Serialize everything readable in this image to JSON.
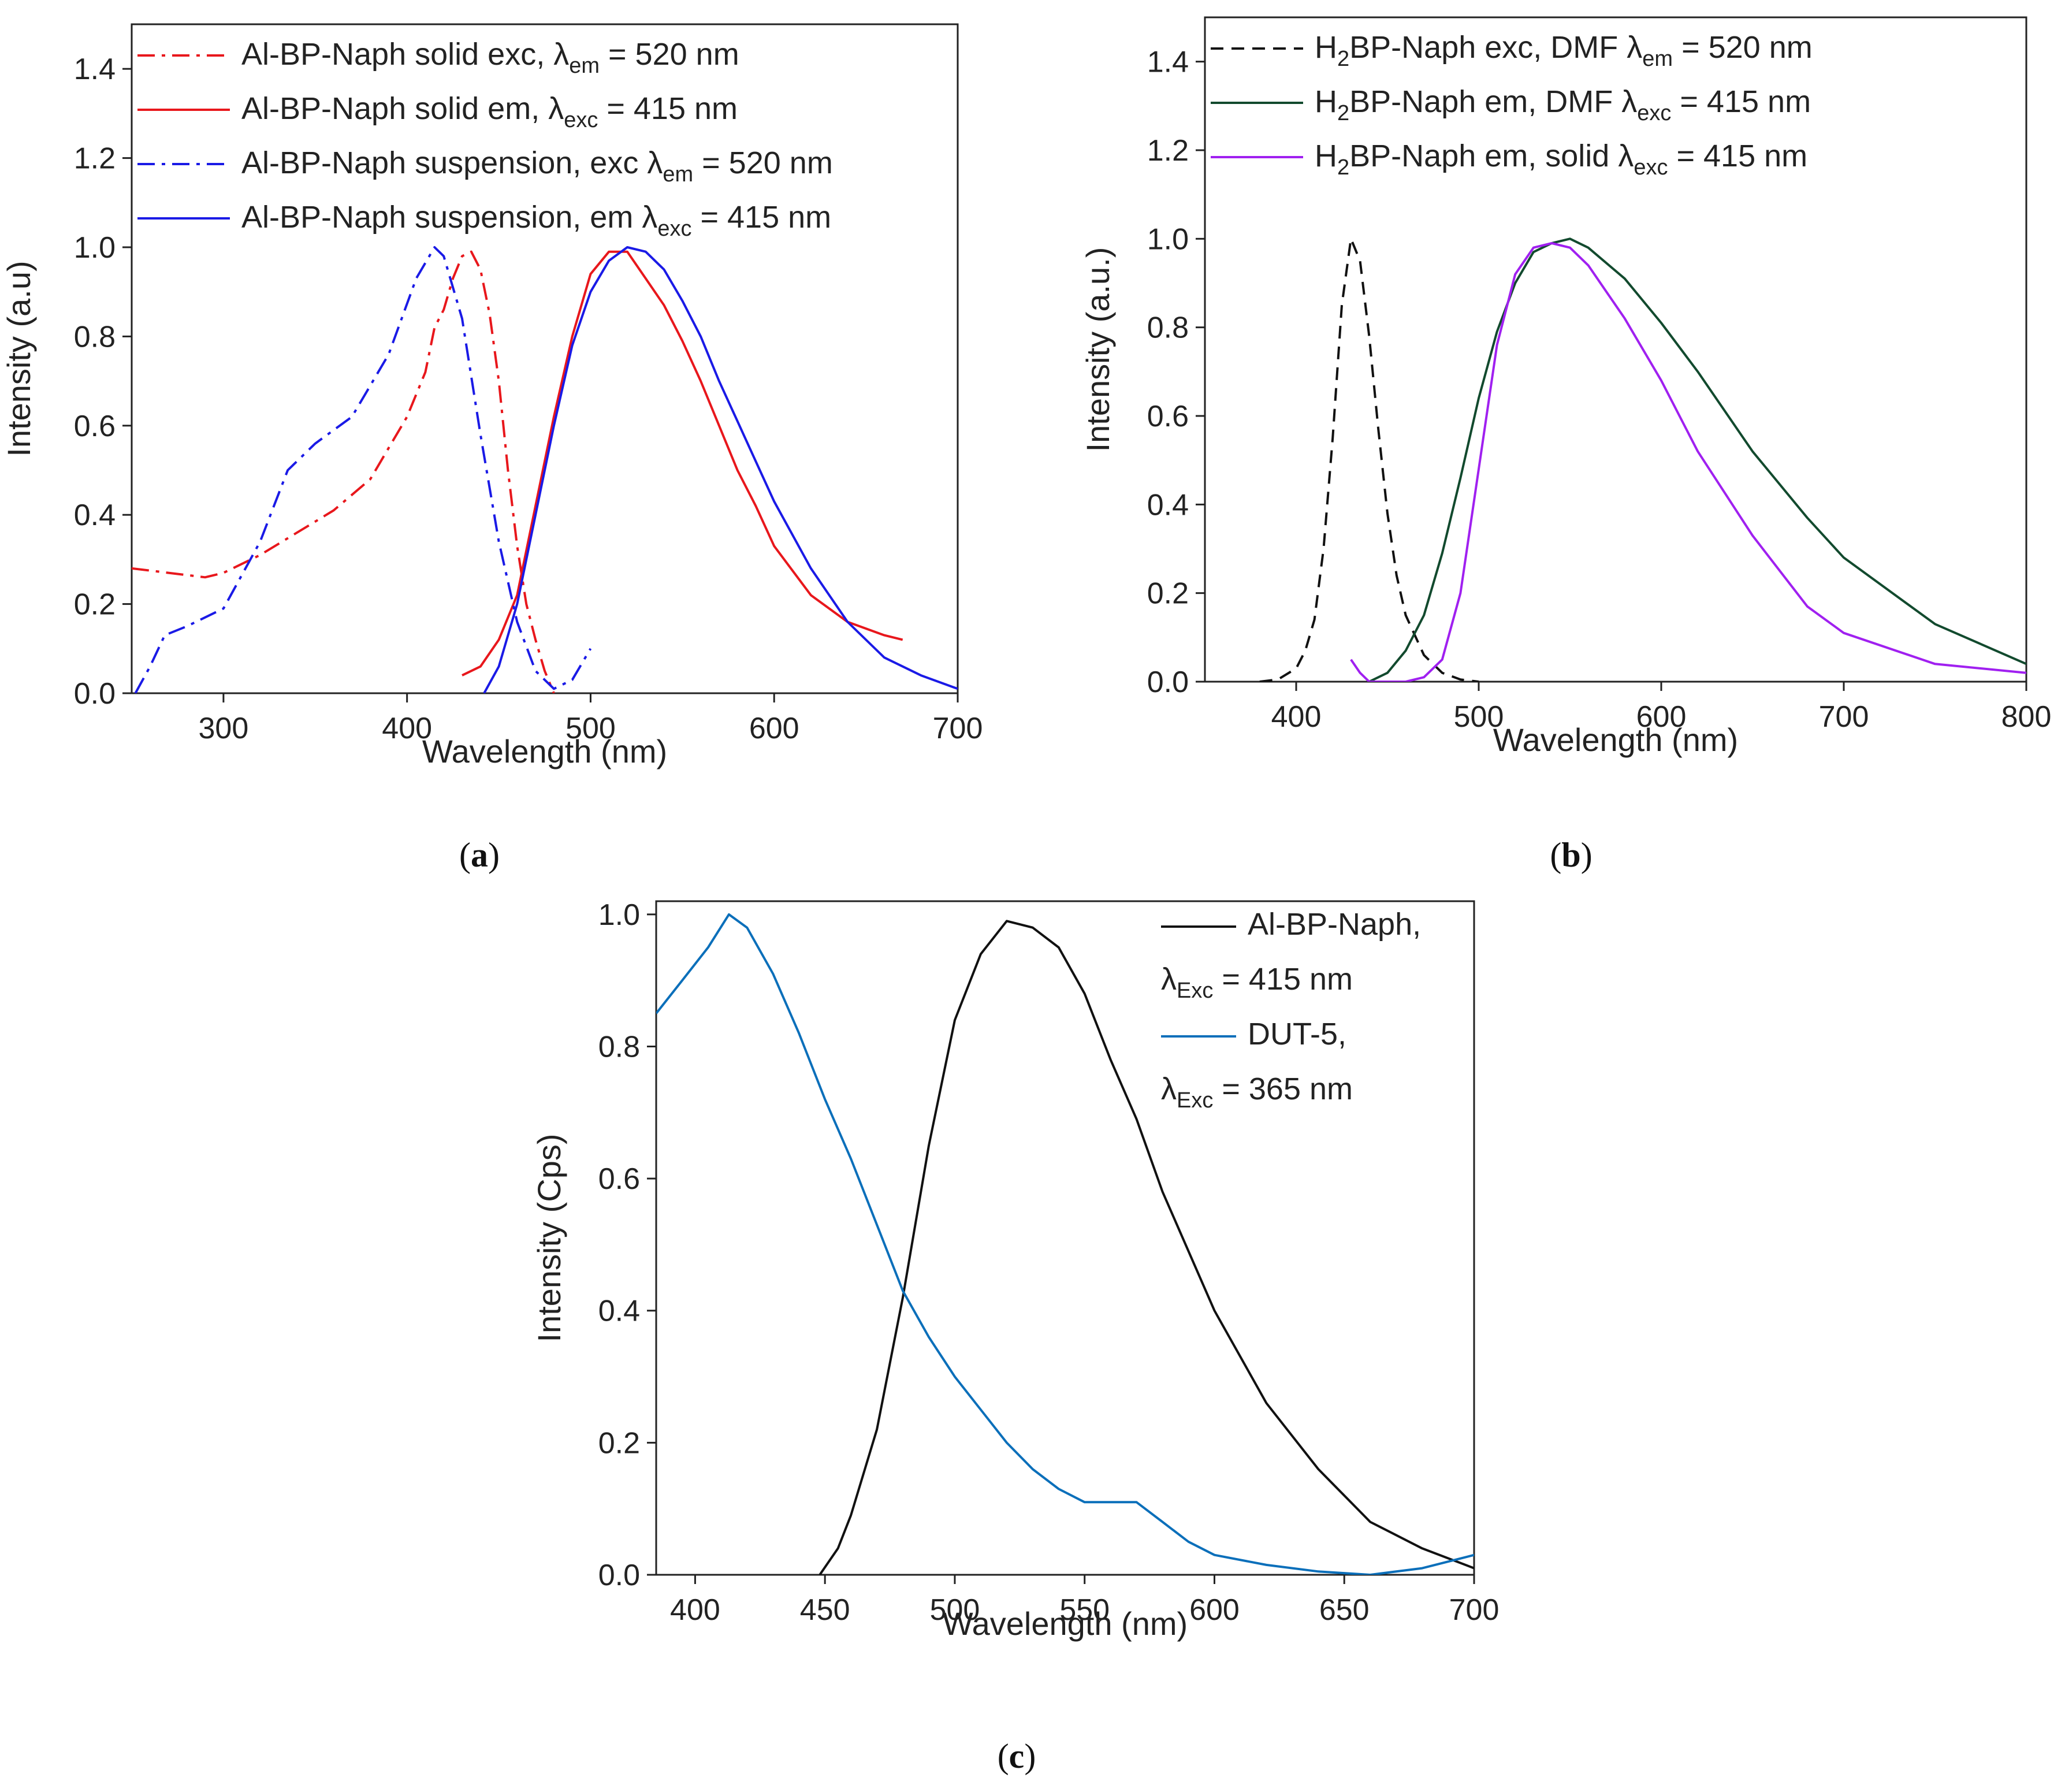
{
  "chart_data": [
    {
      "id": "a",
      "type": "line",
      "panel_label": "a",
      "xlabel": "Wavelength (nm)",
      "ylabel": "Intensity (a.u)",
      "xlim": [
        250,
        700
      ],
      "ylim": [
        0,
        1.5
      ],
      "xticks": [
        300,
        400,
        500,
        600,
        700
      ],
      "yticks": [
        0.0,
        0.2,
        0.4,
        0.6,
        0.8,
        1.0,
        1.2,
        1.4
      ],
      "ytick_labels": [
        "0.0",
        "0.2",
        "0.4",
        "0.6",
        "0.8",
        "1.0",
        "1.2",
        "1.4"
      ],
      "legend_position": "top-left",
      "series": [
        {
          "name": "Al-BP-Naph solid exc, λem = 520 nm",
          "legend": {
            "pre": "Al-BP-Naph solid exc, λ",
            "sub": "em",
            "post": " = 520 nm"
          },
          "color": "#e8171c",
          "style": "dashdot",
          "x": [
            250,
            270,
            290,
            300,
            320,
            340,
            360,
            380,
            400,
            410,
            415,
            420,
            425,
            430,
            435,
            440,
            445,
            450,
            455,
            460,
            465,
            470,
            475,
            480
          ],
          "y": [
            0.28,
            0.27,
            0.26,
            0.27,
            0.31,
            0.36,
            0.41,
            0.48,
            0.62,
            0.72,
            0.82,
            0.86,
            0.93,
            0.98,
            0.99,
            0.95,
            0.85,
            0.7,
            0.5,
            0.33,
            0.2,
            0.12,
            0.05,
            0.0
          ]
        },
        {
          "name": "Al-BP-Naph solid em, λexc = 415 nm",
          "legend": {
            "pre": "Al-BP-Naph solid em, λ",
            "sub": "exc",
            "post": " = 415 nm"
          },
          "color": "#e8171c",
          "style": "solid",
          "x": [
            430,
            440,
            450,
            460,
            470,
            480,
            490,
            500,
            510,
            520,
            530,
            540,
            550,
            560,
            570,
            580,
            590,
            600,
            620,
            640,
            660,
            670
          ],
          "y": [
            0.04,
            0.06,
            0.12,
            0.22,
            0.42,
            0.62,
            0.8,
            0.94,
            0.99,
            0.99,
            0.93,
            0.87,
            0.79,
            0.7,
            0.6,
            0.5,
            0.42,
            0.33,
            0.22,
            0.16,
            0.13,
            0.12
          ]
        },
        {
          "name": "Al-BP-Naph suspension, exc λem = 520 nm",
          "legend": {
            "pre": "Al-BP-Naph suspension, exc λ",
            "sub": "em",
            "post": " = 520 nm"
          },
          "color": "#1a1ae6",
          "style": "dashdot",
          "x": [
            252,
            260,
            268,
            280,
            300,
            320,
            335,
            350,
            370,
            390,
            405,
            415,
            420,
            430,
            440,
            450,
            460,
            470,
            480,
            490,
            500
          ],
          "y": [
            0.0,
            0.06,
            0.13,
            0.15,
            0.19,
            0.34,
            0.5,
            0.56,
            0.62,
            0.76,
            0.93,
            1.0,
            0.98,
            0.84,
            0.58,
            0.34,
            0.16,
            0.05,
            0.01,
            0.03,
            0.1
          ]
        },
        {
          "name": "Al-BP-Naph suspension, em λexc = 415 nm",
          "legend": {
            "pre": "Al-BP-Naph suspension, em λ",
            "sub": "exc",
            "post": " = 415 nm"
          },
          "color": "#1a1ae6",
          "style": "solid",
          "x": [
            442,
            450,
            460,
            470,
            480,
            490,
            500,
            510,
            520,
            530,
            540,
            550,
            560,
            570,
            580,
            590,
            600,
            620,
            640,
            660,
            680,
            700
          ],
          "y": [
            0.0,
            0.06,
            0.2,
            0.4,
            0.6,
            0.78,
            0.9,
            0.97,
            1.0,
            0.99,
            0.95,
            0.88,
            0.8,
            0.7,
            0.61,
            0.52,
            0.43,
            0.28,
            0.16,
            0.08,
            0.04,
            0.01
          ]
        }
      ]
    },
    {
      "id": "b",
      "type": "line",
      "panel_label": "b",
      "xlabel": "Wavelength (nm)",
      "ylabel": "Intensity (a.u.)",
      "xlim": [
        350,
        800
      ],
      "ylim": [
        0,
        1.5
      ],
      "xticks": [
        400,
        500,
        600,
        700,
        800
      ],
      "yticks": [
        0.0,
        0.2,
        0.4,
        0.6,
        0.8,
        1.0,
        1.2,
        1.4
      ],
      "ytick_labels": [
        "0.0",
        "0.2",
        "0.4",
        "0.6",
        "0.8",
        "1.0",
        "1.2",
        "1.4"
      ],
      "legend_position": "top-left",
      "series": [
        {
          "name": "H2BP-Naph exc, DMF λem = 520 nm",
          "legend": {
            "pre": "H",
            "pre_sub": "2",
            "pre2": "BP-Naph exc, DMF λ",
            "sub": "em",
            "post": " = 520 nm"
          },
          "color": "#111111",
          "style": "dashed",
          "x": [
            380,
            390,
            400,
            405,
            410,
            415,
            420,
            425,
            430,
            435,
            440,
            445,
            450,
            455,
            460,
            470,
            480,
            490,
            500
          ],
          "y": [
            0.0,
            0.005,
            0.03,
            0.07,
            0.14,
            0.3,
            0.55,
            0.85,
            1.0,
            0.95,
            0.78,
            0.57,
            0.38,
            0.24,
            0.15,
            0.06,
            0.02,
            0.005,
            0.0
          ]
        },
        {
          "name": "H2BP-Naph em, DMF λexc = 415 nm",
          "legend": {
            "pre": "H",
            "pre_sub": "2",
            "pre2": "BP-Naph em, DMF λ",
            "sub": "exc",
            "post": " = 415 nm"
          },
          "color": "#124a2e",
          "style": "solid",
          "x": [
            440,
            450,
            460,
            470,
            480,
            490,
            500,
            510,
            520,
            530,
            540,
            550,
            560,
            580,
            600,
            620,
            650,
            680,
            700,
            750,
            800
          ],
          "y": [
            0.0,
            0.02,
            0.07,
            0.15,
            0.29,
            0.46,
            0.64,
            0.79,
            0.9,
            0.97,
            0.99,
            1.0,
            0.98,
            0.91,
            0.81,
            0.7,
            0.52,
            0.37,
            0.28,
            0.13,
            0.04
          ]
        },
        {
          "name": "H2BP-Naph em, solid λexc = 415 nm",
          "legend": {
            "pre": "H",
            "pre_sub": "2",
            "pre2": "BP-Naph em, solid λ",
            "sub": "exc",
            "post": " = 415 nm"
          },
          "color": "#a020f0",
          "style": "solid",
          "x": [
            430,
            435,
            440,
            450,
            460,
            470,
            480,
            490,
            500,
            510,
            520,
            530,
            540,
            550,
            560,
            580,
            600,
            620,
            650,
            680,
            700,
            750,
            800
          ],
          "y": [
            0.05,
            0.02,
            0.0,
            0.0,
            0.0,
            0.01,
            0.05,
            0.2,
            0.48,
            0.76,
            0.92,
            0.98,
            0.99,
            0.98,
            0.94,
            0.82,
            0.68,
            0.52,
            0.33,
            0.17,
            0.11,
            0.04,
            0.02
          ]
        }
      ]
    },
    {
      "id": "c",
      "type": "line",
      "panel_label": "c",
      "xlabel": "Wavelength (nm)",
      "ylabel": "Intensity (Cps)",
      "xlim": [
        385,
        700
      ],
      "ylim": [
        0,
        1.02
      ],
      "xticks": [
        400,
        450,
        500,
        550,
        600,
        650,
        700
      ],
      "yticks": [
        0.0,
        0.2,
        0.4,
        0.6,
        0.8,
        1.0
      ],
      "ytick_labels": [
        "0.0",
        "0.2",
        "0.4",
        "0.6",
        "0.8",
        "1.0"
      ],
      "legend_position": "top-right",
      "series": [
        {
          "name": "Al-BP-Naph, λExc = 415 nm",
          "legend": {
            "line1": "Al-BP-Naph,",
            "pre": "λ",
            "sub": "Exc",
            "post": " = 415 nm"
          },
          "color": "#111111",
          "style": "solid",
          "x": [
            448,
            455,
            460,
            470,
            480,
            490,
            500,
            510,
            520,
            530,
            540,
            550,
            560,
            570,
            580,
            600,
            620,
            640,
            660,
            680,
            700
          ],
          "y": [
            0.0,
            0.04,
            0.09,
            0.22,
            0.42,
            0.65,
            0.84,
            0.94,
            0.99,
            0.98,
            0.95,
            0.88,
            0.78,
            0.69,
            0.58,
            0.4,
            0.26,
            0.16,
            0.08,
            0.04,
            0.01
          ]
        },
        {
          "name": "DUT-5, λExc = 365 nm",
          "legend": {
            "line1": "DUT-5,",
            "pre": "λ",
            "sub": "Exc",
            "post": " = 365 nm"
          },
          "color": "#0b6fba",
          "style": "solid",
          "x": [
            385,
            395,
            405,
            413,
            420,
            430,
            440,
            450,
            460,
            470,
            480,
            490,
            500,
            510,
            520,
            530,
            540,
            550,
            560,
            570,
            580,
            590,
            600,
            620,
            640,
            660,
            680,
            700
          ],
          "y": [
            0.85,
            0.9,
            0.95,
            1.0,
            0.98,
            0.91,
            0.82,
            0.72,
            0.63,
            0.53,
            0.43,
            0.36,
            0.3,
            0.25,
            0.2,
            0.16,
            0.13,
            0.11,
            0.11,
            0.11,
            0.08,
            0.05,
            0.03,
            0.015,
            0.005,
            0.0,
            0.01,
            0.03
          ]
        }
      ]
    }
  ]
}
